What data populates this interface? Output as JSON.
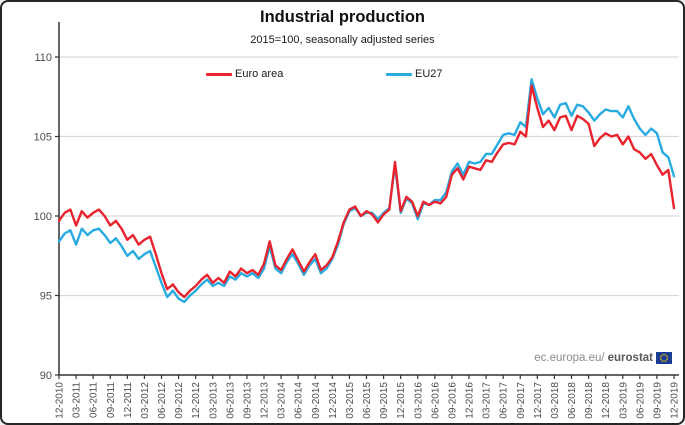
{
  "window": {
    "background": "#ffffff",
    "border_color": "#262626"
  },
  "chart_data": {
    "type": "line",
    "title": "Industrial production",
    "subtitle": "2015=100, seasonally adjusted series",
    "frequency": "monthly",
    "x_range": [
      "12-2010",
      "12-2019"
    ],
    "x_tick_labels": [
      "12-2010",
      "03-2011",
      "06-2011",
      "09-2011",
      "12-2011",
      "03-2012",
      "06-2012",
      "09-2012",
      "12-2012",
      "03-2013",
      "06-2013",
      "09-2013",
      "12-2013",
      "03-2014",
      "06-2014",
      "09-2014",
      "12-2014",
      "03-2015",
      "06-2015",
      "09-2015",
      "12-2015",
      "03-2016",
      "06-2016",
      "09-2016",
      "12-2016",
      "03-2017",
      "06-2017",
      "09-2017",
      "12-2017",
      "03-2018",
      "06-2018",
      "09-2018",
      "12-2018",
      "03-2019",
      "06-2019",
      "09-2019",
      "12-2019"
    ],
    "months_per_tick": 3,
    "y_ticks": [
      90,
      95,
      100,
      105,
      110
    ],
    "ylim": [
      90,
      110
    ],
    "grid": "horizontal",
    "legend_position": "top",
    "series": [
      {
        "name": "Euro area",
        "color": "#e8232e",
        "values": [
          99.7,
          100.2,
          100.4,
          99.4,
          100.3,
          99.9,
          100.2,
          100.4,
          100.0,
          99.4,
          99.7,
          99.2,
          98.5,
          98.8,
          98.2,
          98.5,
          98.7,
          97.6,
          96.4,
          95.4,
          95.7,
          95.2,
          94.9,
          95.3,
          95.6,
          96.0,
          96.3,
          95.8,
          96.1,
          95.8,
          96.5,
          96.2,
          96.7,
          96.4,
          96.6,
          96.3,
          97.0,
          98.4,
          96.9,
          96.6,
          97.3,
          97.9,
          97.2,
          96.5,
          97.1,
          97.6,
          96.6,
          96.9,
          97.4,
          98.4,
          99.6,
          100.4,
          100.6,
          100.0,
          100.3,
          100.1,
          99.6,
          100.1,
          100.4,
          103.4,
          100.3,
          101.2,
          100.9,
          100.0,
          100.9,
          100.7,
          100.9,
          100.8,
          101.2,
          102.6,
          103.0,
          102.3,
          103.1,
          103.0,
          102.9,
          103.5,
          103.4,
          104.0,
          104.5,
          104.6,
          104.5,
          105.3,
          105.0,
          108.2,
          106.8,
          105.6,
          106.0,
          105.4,
          106.2,
          106.3,
          105.4,
          106.3,
          106.1,
          105.8,
          104.4,
          104.9,
          105.2,
          105.0,
          105.1,
          104.5,
          105.0,
          104.2,
          104.0,
          103.6,
          103.9,
          103.2,
          102.6,
          102.9,
          100.5
        ]
      },
      {
        "name": "EU27",
        "color": "#29abe2",
        "values": [
          98.4,
          98.9,
          99.1,
          98.2,
          99.2,
          98.8,
          99.1,
          99.2,
          98.8,
          98.3,
          98.6,
          98.1,
          97.5,
          97.8,
          97.3,
          97.6,
          97.8,
          96.8,
          95.8,
          94.9,
          95.3,
          94.8,
          94.6,
          95.0,
          95.3,
          95.7,
          96.0,
          95.6,
          95.8,
          95.6,
          96.2,
          96.0,
          96.4,
          96.2,
          96.4,
          96.1,
          96.7,
          98.1,
          96.7,
          96.4,
          97.1,
          97.6,
          97.0,
          96.3,
          96.9,
          97.3,
          96.4,
          96.7,
          97.3,
          98.2,
          99.5,
          100.3,
          100.5,
          100.0,
          100.2,
          100.2,
          99.8,
          100.2,
          100.5,
          103.2,
          100.2,
          101.1,
          100.8,
          99.8,
          100.8,
          100.7,
          101.0,
          101.0,
          101.5,
          102.8,
          103.3,
          102.6,
          103.4,
          103.3,
          103.4,
          103.9,
          103.9,
          104.5,
          105.1,
          105.2,
          105.1,
          105.9,
          105.6,
          108.6,
          107.4,
          106.4,
          106.8,
          106.2,
          107.0,
          107.1,
          106.3,
          107.0,
          106.9,
          106.5,
          106.0,
          106.4,
          106.7,
          106.6,
          106.6,
          106.2,
          106.9,
          106.1,
          105.5,
          105.1,
          105.5,
          105.2,
          104.0,
          103.7,
          102.5
        ]
      }
    ]
  },
  "watermark": {
    "prefix": "ec.europa.eu/",
    "bold": "eurostat",
    "flag_bg": "#1b3d91",
    "flag_stars": "#ffcc00"
  },
  "colors": {
    "grid": "#d9d9d9",
    "axis": "#333333",
    "tick_text": "#4d4d4d"
  }
}
